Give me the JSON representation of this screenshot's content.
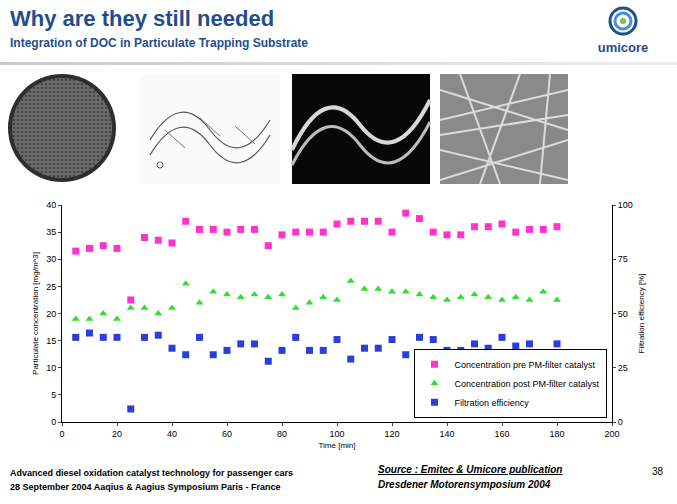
{
  "slide": {
    "title": "Why are they still needed",
    "subtitle": "Integration of DOC in Particulate Trapping Substrate",
    "logo": "umicore",
    "footer_left": [
      "Advanced diesel oxidation catalyst technology for passenger cars",
      "28 September 2004  Aaqius & Aagius Symposium  Paris - France"
    ],
    "footer_right": [
      "Source : Emitec & Umicore publication",
      "Dresdener Motorensymposium 2004"
    ],
    "page": 38
  },
  "chart_data": {
    "type": "scatter",
    "x_label": "Time [min]",
    "y_label": "Particulate concentration [mg/m^3]",
    "y2_label": "Filtration efficiency [%]",
    "x": [
      5,
      10,
      15,
      20,
      25,
      30,
      35,
      40,
      45,
      50,
      55,
      60,
      65,
      70,
      75,
      80,
      85,
      90,
      95,
      100,
      105,
      110,
      115,
      120,
      125,
      130,
      135,
      140,
      145,
      150,
      155,
      160,
      165,
      170,
      175,
      180
    ],
    "xlim": [
      0,
      200
    ],
    "xticks": [
      0,
      20,
      40,
      60,
      80,
      100,
      120,
      140,
      160,
      180,
      200
    ],
    "ylim": [
      0,
      40
    ],
    "yticks": [
      0,
      5,
      10,
      15,
      20,
      25,
      30,
      35,
      40
    ],
    "y2lim": [
      0,
      100
    ],
    "y2ticks": [
      0,
      25,
      50,
      75,
      100
    ],
    "grid": false,
    "legend": "lower right",
    "series": [
      {
        "name": "Concentration pre PM-filter catalyst",
        "color": "#ff33cc",
        "marker": "square",
        "values": [
          31.5,
          32,
          32.5,
          32,
          22.5,
          34,
          33.5,
          33,
          37,
          35.5,
          35.5,
          35,
          35.5,
          35.5,
          32.5,
          34.5,
          35,
          35,
          35,
          36.5,
          37,
          37,
          37,
          35,
          38.5,
          37.5,
          35,
          34.5,
          34.5,
          36,
          36,
          36.5,
          35,
          35.5,
          35.5,
          36
        ]
      },
      {
        "name": "Concentration post PM-filter catalyst",
        "color": "#33dd33",
        "marker": "triangle-up",
        "values": [
          19,
          19,
          20,
          19,
          21,
          21,
          20,
          21,
          25.5,
          22,
          24,
          23.5,
          23,
          23.5,
          23,
          23.5,
          21,
          22,
          23,
          22.5,
          26,
          24.5,
          24.5,
          24,
          24,
          23.5,
          23,
          22.5,
          23,
          23.5,
          23,
          22.5,
          23,
          22.5,
          24,
          22.5
        ]
      },
      {
        "name": "Filtration efficiency",
        "color": "#2b3fd6",
        "marker": "square",
        "axis": "y2",
        "values": [
          39,
          41,
          39,
          39,
          6,
          39,
          40,
          34,
          31,
          39,
          31,
          33,
          36,
          36,
          28,
          33,
          39,
          33,
          33,
          38,
          29,
          34,
          34,
          38,
          31,
          39,
          38,
          33,
          33,
          36,
          34,
          39,
          35,
          36,
          31,
          36
        ]
      }
    ]
  }
}
